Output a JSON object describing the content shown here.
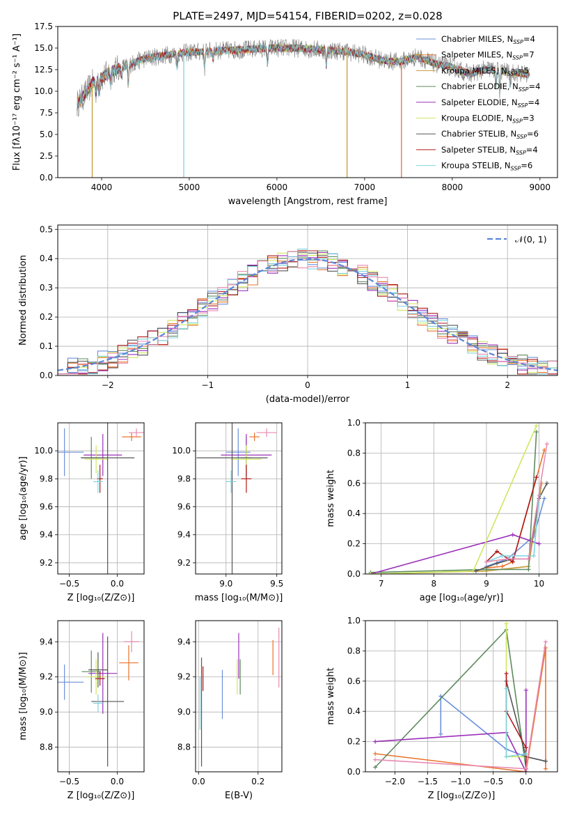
{
  "figure": {
    "title": "PLATE=2497, MJD=54154, FIBERID=0202, z=0.028"
  },
  "colors": {
    "Chabrier MILES": "#6a8fdb",
    "Salpeter MILES": "#e8732a",
    "Kroupa MILES": "#c69a3a",
    "Chabrier ELODIE": "#5e8a5e",
    "Salpeter ELODIE": "#9a2fb8",
    "Kroupa ELODIE": "#cde860",
    "Chabrier STELIB": "#555555",
    "Salpeter STELIB": "#b01818",
    "Kroupa STELIB": "#7fd3e0",
    "pink": "#e88ab0",
    "gray": "#7f7f7f"
  },
  "chart_data": [
    {
      "id": "spectrum",
      "type": "line",
      "title": "PLATE=2497, MJD=54154, FIBERID=0202, z=0.028",
      "xlabel": "wavelength [Angstrom, rest frame]",
      "ylabel": "Flux [fλ10⁻¹⁷ erg cm⁻² s⁻¹ A⁻¹]",
      "xlim": [
        3500,
        9200
      ],
      "ylim": [
        0,
        17.5
      ],
      "xticks": [
        4000,
        5000,
        6000,
        7000,
        8000,
        9000
      ],
      "yticks": [
        0.0,
        2.5,
        5.0,
        7.5,
        10.0,
        12.5,
        15.0,
        17.5
      ],
      "grid": false,
      "legend_position": "top-right",
      "series": [
        {
          "name": "Chabrier MILES, N_SSP=4",
          "label": "Chabrier MILES, N",
          "sub": "SSP",
          "tail": "=4",
          "color": "#6a8fdb"
        },
        {
          "name": "Salpeter MILES, N_SSP=7",
          "label": "Salpeter MILES, N",
          "sub": "SSP",
          "tail": "=7",
          "color": "#e8732a"
        },
        {
          "name": "Kroupa MILES, N_SSP=5",
          "label": "Kroupa MILES, N",
          "sub": "SSP",
          "tail": "=5",
          "color": "#c69a3a"
        },
        {
          "name": "Chabrier ELODIE, N_SSP=4",
          "label": "Chabrier ELODIE, N",
          "sub": "SSP",
          "tail": "=4",
          "color": "#5e8a5e"
        },
        {
          "name": "Salpeter ELODIE, N_SSP=4",
          "label": "Salpeter ELODIE, N",
          "sub": "SSP",
          "tail": "=4",
          "color": "#9a2fb8"
        },
        {
          "name": "Kroupa ELODIE, N_SSP=3",
          "label": "Kroupa ELODIE, N",
          "sub": "SSP",
          "tail": "=3",
          "color": "#cde860"
        },
        {
          "name": "Chabrier STELIB, N_SSP=6",
          "label": "Chabrier STELIB, N",
          "sub": "SSP",
          "tail": "=6",
          "color": "#555555"
        },
        {
          "name": "Salpeter STELIB, N_SSP=4",
          "label": "Salpeter STELIB, N",
          "sub": "SSP",
          "tail": "=4",
          "color": "#b01818"
        },
        {
          "name": "Kroupa STELIB, N_SSP=6",
          "label": "Kroupa STELIB, N",
          "sub": "SSP",
          "tail": "=6",
          "color": "#7fd3e0"
        }
      ],
      "continuum": [
        [
          3720,
          8.5
        ],
        [
          3800,
          9.5
        ],
        [
          3900,
          11
        ],
        [
          4000,
          11.5
        ],
        [
          4100,
          12.3
        ],
        [
          4300,
          13
        ],
        [
          4500,
          13.8
        ],
        [
          4800,
          14.3
        ],
        [
          5000,
          14.5
        ],
        [
          5300,
          14.7
        ],
        [
          5600,
          14.8
        ],
        [
          5900,
          15.0
        ],
        [
          6200,
          15.0
        ],
        [
          6500,
          14.8
        ],
        [
          6800,
          14.6
        ],
        [
          7000,
          14.2
        ],
        [
          7200,
          13.6
        ],
        [
          7400,
          13.4
        ],
        [
          7600,
          14.0
        ],
        [
          7800,
          13.2
        ],
        [
          8000,
          12.8
        ],
        [
          8200,
          12.0
        ],
        [
          8400,
          12.6
        ],
        [
          8600,
          12.3
        ],
        [
          8850,
          12.0
        ]
      ],
      "absorption_lines": [
        [
          3934,
          9.8
        ],
        [
          3968,
          9.8
        ],
        [
          4101,
          11.2
        ],
        [
          4227,
          11.8
        ],
        [
          4304,
          10.7
        ],
        [
          4861,
          12.8
        ],
        [
          5175,
          12.7
        ],
        [
          5270,
          13.8
        ],
        [
          5893,
          13.2
        ],
        [
          6563,
          13.0
        ],
        [
          8498,
          10.5
        ],
        [
          8542,
          10.0
        ],
        [
          8662,
          10.8
        ]
      ],
      "artifacts": [
        {
          "x": 3893,
          "color": "#c69a3a"
        },
        {
          "x": 4937,
          "color": "#7fd3e0"
        },
        {
          "x": 6800,
          "color": "#c69a3a"
        },
        {
          "x": 7420,
          "color": "#e8732a"
        }
      ]
    },
    {
      "id": "residuals",
      "type": "histogram",
      "xlabel": "(data-model)/error",
      "ylabel": "Normed distribution",
      "xlim": [
        -2.5,
        2.5
      ],
      "ylim": [
        0,
        0.515
      ],
      "xticks": [
        -2,
        -1,
        0,
        1,
        2
      ],
      "yticks": [
        0.0,
        0.1,
        0.2,
        0.3,
        0.4,
        0.5
      ],
      "grid": true,
      "bin_width": 0.1,
      "legend": {
        "label": "𝒩(0, 1)",
        "position": "top-right",
        "color": "#5b86d8"
      },
      "series_colors": [
        "#6a8fdb",
        "#e8732a",
        "#5e8a5e",
        "#9a2fb8",
        "#cde860",
        "#555555",
        "#b01818",
        "#7fd3e0",
        "#e88ab0"
      ],
      "reference_curve": {
        "type": "normal",
        "mu": 0,
        "sigma": 1
      }
    },
    {
      "id": "age-vs-Z",
      "type": "errorbar",
      "xlabel": "Z [log₁₀(Z/Z⊙)]",
      "ylabel": "age  [log₁₀(age/yr)]",
      "xlim": [
        -0.62,
        0.28
      ],
      "ylim": [
        9.12,
        10.2
      ],
      "xticks": [
        -0.5,
        0.0
      ],
      "yticks": [
        9.2,
        9.4,
        9.6,
        9.8,
        10.0
      ],
      "grid": true,
      "points": [
        {
          "x": -0.55,
          "xerr": 0.2,
          "y": 9.99,
          "yerr": 0.17,
          "color": "#6a8fdb"
        },
        {
          "x": 0.15,
          "xerr": 0.1,
          "y": 10.1,
          "yerr": 0.03,
          "color": "#e8732a"
        },
        {
          "x": -0.27,
          "xerr": 0.1,
          "y": 9.95,
          "yerr": 0.15,
          "color": "#5e8a5e"
        },
        {
          "x": -0.15,
          "xerr": 0.2,
          "y": 9.97,
          "yerr": 0.15,
          "color": "#9a2fb8"
        },
        {
          "x": -0.22,
          "xerr": 0.12,
          "y": 9.94,
          "yerr": 0.1,
          "color": "#cde860"
        },
        {
          "x": -0.1,
          "xerr": 0.28,
          "y": 9.95,
          "yerr": 0.85,
          "color": "#555555"
        },
        {
          "x": -0.18,
          "xerr": 0.03,
          "y": 9.8,
          "yerr": 0.1,
          "color": "#b01818"
        },
        {
          "x": -0.2,
          "xerr": 0.05,
          "y": 9.78,
          "yerr": 0.08,
          "color": "#7fd3e0"
        },
        {
          "x": 0.2,
          "xerr": 0.08,
          "y": 10.13,
          "yerr": 0.03,
          "color": "#e88ab0"
        }
      ]
    },
    {
      "id": "age-vs-mass",
      "type": "errorbar",
      "xlabel": "mass [log₁₀(M/M⊙)]",
      "xlim": [
        8.7,
        9.55
      ],
      "ylim": [
        9.12,
        10.2
      ],
      "xticks": [
        9.0,
        9.5
      ],
      "yticks": [
        9.2,
        9.4,
        9.6,
        9.8,
        10.0
      ],
      "grid": true,
      "points": [
        {
          "x": 9.12,
          "xerr": 0.12,
          "y": 9.99,
          "yerr": 0.17,
          "color": "#6a8fdb"
        },
        {
          "x": 9.28,
          "xerr": 0.05,
          "y": 10.1,
          "yerr": 0.03,
          "color": "#e8732a"
        },
        {
          "x": 9.2,
          "xerr": 0.05,
          "y": 9.95,
          "yerr": 0.15,
          "color": "#5e8a5e"
        },
        {
          "x": 9.2,
          "xerr": 0.25,
          "y": 9.97,
          "yerr": 0.15,
          "color": "#9a2fb8"
        },
        {
          "x": 9.2,
          "xerr": 0.15,
          "y": 9.94,
          "yerr": 0.1,
          "color": "#cde860"
        },
        {
          "x": 9.06,
          "xerr": 0.35,
          "y": 9.95,
          "yerr": 0.85,
          "color": "#555555"
        },
        {
          "x": 9.2,
          "xerr": 0.05,
          "y": 9.8,
          "yerr": 0.1,
          "color": "#b01818"
        },
        {
          "x": 9.05,
          "xerr": 0.05,
          "y": 9.78,
          "yerr": 0.08,
          "color": "#7fd3e0"
        },
        {
          "x": 9.4,
          "xerr": 0.1,
          "y": 10.13,
          "yerr": 0.03,
          "color": "#e88ab0"
        }
      ]
    },
    {
      "id": "weight-vs-age",
      "type": "line",
      "xlabel": "age  [log₁₀(age/yr)]",
      "ylabel": "mass weight",
      "xlim": [
        6.7,
        10.35
      ],
      "ylim": [
        0,
        1.0
      ],
      "xticks": [
        7,
        8,
        9,
        10
      ],
      "yticks": [
        0.0,
        0.2,
        0.4,
        0.6,
        0.8,
        1.0
      ],
      "grid": true,
      "series": [
        {
          "color": "#6a8fdb",
          "points": [
            [
              9.0,
              0.05
            ],
            [
              9.4,
              0.1
            ],
            [
              9.9,
              0.25
            ],
            [
              10.1,
              0.5
            ]
          ]
        },
        {
          "color": "#e8732a",
          "points": [
            [
              9.0,
              0.04
            ],
            [
              9.3,
              0.05
            ],
            [
              9.5,
              0.08
            ],
            [
              10.1,
              0.82
            ]
          ]
        },
        {
          "color": "#c69a3a",
          "points": [
            [
              6.8,
              0.0
            ],
            [
              9.0,
              0.02
            ],
            [
              9.8,
              0.05
            ],
            [
              10.05,
              0.6
            ]
          ]
        },
        {
          "color": "#5e8a5e",
          "points": [
            [
              6.8,
              0.01
            ],
            [
              9.0,
              0.03
            ],
            [
              9.8,
              0.03
            ],
            [
              9.95,
              0.94
            ]
          ]
        },
        {
          "color": "#9a2fb8",
          "points": [
            [
              6.8,
              0.0
            ],
            [
              9.5,
              0.26
            ],
            [
              10.0,
              0.2
            ]
          ]
        },
        {
          "color": "#cde860",
          "points": [
            [
              6.8,
              0.0
            ],
            [
              8.75,
              0.02
            ],
            [
              9.95,
              0.98
            ]
          ]
        },
        {
          "color": "#555555",
          "points": [
            [
              8.8,
              0.02
            ],
            [
              9.2,
              0.07
            ],
            [
              9.5,
              0.1
            ],
            [
              9.8,
              0.1
            ],
            [
              10.0,
              0.5
            ],
            [
              10.15,
              0.6
            ]
          ]
        },
        {
          "color": "#b01818",
          "points": [
            [
              9.0,
              0.08
            ],
            [
              9.2,
              0.15
            ],
            [
              9.5,
              0.08
            ],
            [
              9.95,
              0.64
            ]
          ]
        },
        {
          "color": "#7fd3e0",
          "points": [
            [
              9.0,
              0.08
            ],
            [
              9.3,
              0.12
            ],
            [
              9.9,
              0.12
            ],
            [
              10.0,
              0.52
            ]
          ]
        },
        {
          "color": "#e88ab0",
          "points": [
            [
              9.0,
              0.08
            ],
            [
              9.4,
              0.1
            ],
            [
              9.8,
              0.1
            ],
            [
              10.15,
              0.86
            ]
          ]
        }
      ]
    },
    {
      "id": "mass-vs-Z",
      "type": "errorbar",
      "xlabel": "Z [log₁₀(Z/Z⊙)]",
      "ylabel": "mass [log₁₀(M/M⊙)]",
      "xlim": [
        -0.62,
        0.28
      ],
      "ylim": [
        8.66,
        9.52
      ],
      "xticks": [
        -0.5,
        0.0
      ],
      "yticks": [
        8.8,
        9.0,
        9.2,
        9.4
      ],
      "grid": true,
      "points": [
        {
          "x": -0.55,
          "xerr": 0.2,
          "y": 9.17,
          "yerr": 0.1,
          "color": "#6a8fdb"
        },
        {
          "x": 0.12,
          "xerr": 0.1,
          "y": 9.28,
          "yerr": 0.1,
          "color": "#e8732a"
        },
        {
          "x": -0.27,
          "xerr": 0.1,
          "y": 9.23,
          "yerr": 0.12,
          "color": "#5e8a5e"
        },
        {
          "x": -0.15,
          "xerr": 0.15,
          "y": 9.22,
          "yerr": 0.23,
          "color": "#9a2fb8"
        },
        {
          "x": -0.22,
          "xerr": 0.1,
          "y": 9.2,
          "yerr": 0.1,
          "color": "#cde860"
        },
        {
          "x": -0.1,
          "xerr": 0.17,
          "y": 9.06,
          "yerr": 0.37,
          "color": "#555555"
        },
        {
          "x": -0.2,
          "xerr": 0.1,
          "y": 9.24,
          "yerr": 0.1,
          "color": "#555555"
        },
        {
          "x": -0.18,
          "xerr": 0.05,
          "y": 9.19,
          "yerr": 0.04,
          "color": "#b01818"
        },
        {
          "x": -0.2,
          "xerr": 0.05,
          "y": 9.05,
          "yerr": 0.05,
          "color": "#7fd3e0"
        },
        {
          "x": 0.15,
          "xerr": 0.08,
          "y": 9.4,
          "yerr": 0.06,
          "color": "#e88ab0"
        }
      ]
    },
    {
      "id": "mass-vs-ebv",
      "type": "errorbar",
      "xlabel": "E(B-V)",
      "xlim": [
        -0.01,
        0.28
      ],
      "ylim": [
        8.66,
        9.52
      ],
      "xticks": [
        0.0,
        0.2
      ],
      "yticks": [
        8.8,
        9.0,
        9.2,
        9.4
      ],
      "grid": true,
      "points": [
        {
          "x": 0.08,
          "y": 9.1,
          "yerr": 0.14,
          "color": "#6a8fdb"
        },
        {
          "x": 0.25,
          "y": 9.31,
          "yerr": 0.1,
          "color": "#e8732a"
        },
        {
          "x": 0.14,
          "y": 9.2,
          "yerr": 0.1,
          "color": "#5e8a5e"
        },
        {
          "x": 0.135,
          "y": 9.32,
          "yerr": 0.13,
          "color": "#9a2fb8"
        },
        {
          "x": 0.13,
          "y": 9.2,
          "yerr": 0.1,
          "color": "#cde860"
        },
        {
          "x": 0.01,
          "y": 9.0,
          "yerr": 0.31,
          "color": "#555555"
        },
        {
          "x": 0.015,
          "y": 9.19,
          "yerr": 0.07,
          "color": "#b01818"
        },
        {
          "x": 0.005,
          "y": 9.05,
          "yerr": 0.15,
          "color": "#7fd3e0"
        },
        {
          "x": 0.27,
          "y": 9.31,
          "yerr": 0.17,
          "color": "#e88ab0"
        }
      ]
    },
    {
      "id": "weight-vs-Z",
      "type": "line",
      "xlabel": "Z [log₁₀(Z/Z⊙)]",
      "ylabel": "mass weight",
      "xlim": [
        -2.45,
        0.48
      ],
      "ylim": [
        0,
        1.0
      ],
      "xticks": [
        -2.0,
        -1.5,
        -1.0,
        -0.5,
        0.0
      ],
      "yticks": [
        0.0,
        0.2,
        0.4,
        0.6,
        0.8,
        1.0
      ],
      "grid": true,
      "series": [
        {
          "color": "#6a8fdb",
          "points": [
            [
              -1.3,
              0.5
            ],
            [
              -1.3,
              0.25
            ],
            [
              -1.3,
              0.5
            ],
            [
              -0.3,
              0.15
            ],
            [
              0.0,
              0.1
            ],
            [
              0.3,
              0.07
            ]
          ]
        },
        {
          "color": "#e8732a",
          "points": [
            [
              -2.3,
              0.12
            ],
            [
              0.0,
              0.0
            ],
            [
              0.3,
              0.82
            ],
            [
              0.3,
              0.02
            ]
          ]
        },
        {
          "color": "#5e8a5e",
          "points": [
            [
              -2.3,
              0.03
            ],
            [
              -0.3,
              0.94
            ],
            [
              0.0,
              0.02
            ]
          ]
        },
        {
          "color": "#9a2fb8",
          "points": [
            [
              -2.3,
              0.2
            ],
            [
              -0.3,
              0.26
            ],
            [
              0.0,
              0.0
            ],
            [
              0.0,
              0.54
            ]
          ]
        },
        {
          "color": "#cde860",
          "points": [
            [
              -0.3,
              0.98
            ],
            [
              -0.3,
              0.1
            ],
            [
              0.0,
              0.1
            ]
          ]
        },
        {
          "color": "#555555",
          "points": [
            [
              -0.3,
              0.6
            ],
            [
              0.0,
              0.1
            ],
            [
              0.3,
              0.07
            ]
          ]
        },
        {
          "color": "#b01818",
          "points": [
            [
              -0.3,
              0.65
            ],
            [
              -0.3,
              0.4
            ],
            [
              0.0,
              0.16
            ],
            [
              0.0,
              0.02
            ]
          ]
        },
        {
          "color": "#7fd3e0",
          "points": [
            [
              -0.3,
              0.55
            ],
            [
              -0.3,
              0.1
            ],
            [
              0.0,
              0.12
            ]
          ]
        },
        {
          "color": "#e88ab0",
          "points": [
            [
              -2.3,
              0.08
            ],
            [
              0.0,
              0.02
            ],
            [
              0.3,
              0.86
            ]
          ]
        }
      ]
    }
  ]
}
